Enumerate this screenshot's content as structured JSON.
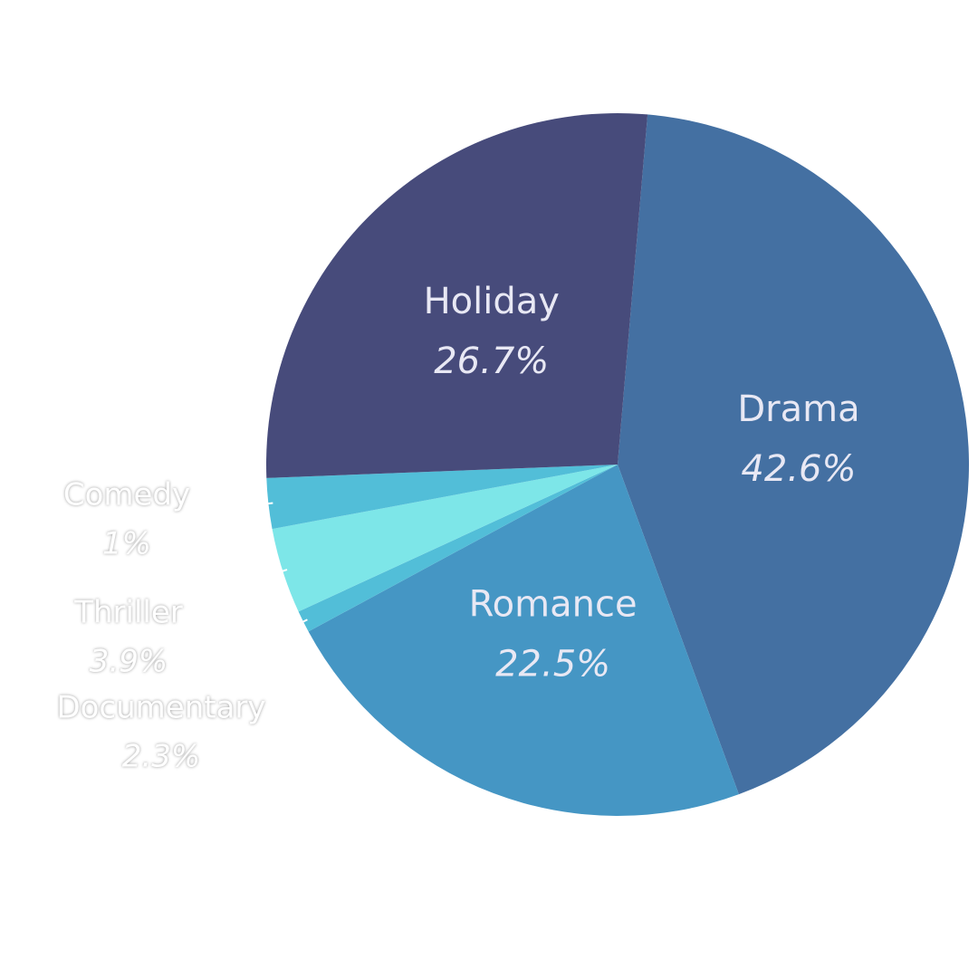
{
  "chart_data": {
    "type": "pie",
    "categories": [
      "Drama",
      "Romance",
      "Comedy",
      "Thriller",
      "Documentary",
      "Holiday"
    ],
    "values": [
      42.6,
      22.5,
      1,
      3.9,
      2.3,
      26.7
    ],
    "value_labels": [
      "42.6%",
      "22.5%",
      "1%",
      "3.9%",
      "2.3%",
      "26.7%"
    ],
    "colors": [
      "#4470a2",
      "#4596c4",
      "#52bed8",
      "#7de6e8",
      "#52bed8",
      "#474b7b"
    ]
  }
}
